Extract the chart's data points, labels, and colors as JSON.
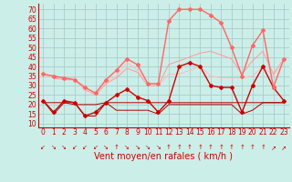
{
  "background_color": "#cceee8",
  "grid_color": "#aacccc",
  "xlabel": "Vent moyen/en rafales ( km/h )",
  "xlabel_color": "#cc0000",
  "xlabel_fontsize": 7,
  "ytick_labels": [
    "10",
    "15",
    "20",
    "25",
    "30",
    "35",
    "40",
    "45",
    "50",
    "55",
    "60",
    "65",
    "70"
  ],
  "ytick_vals": [
    10,
    15,
    20,
    25,
    30,
    35,
    40,
    45,
    50,
    55,
    60,
    65,
    70
  ],
  "xtick_vals": [
    0,
    1,
    2,
    3,
    4,
    5,
    6,
    7,
    8,
    9,
    10,
    11,
    12,
    13,
    14,
    15,
    16,
    17,
    18,
    19,
    20,
    21,
    22,
    23
  ],
  "ylim": [
    8,
    73
  ],
  "xlim": [
    -0.5,
    23.5
  ],
  "tick_color": "#cc0000",
  "tick_fontsize": 5.5,
  "spine_color": "#cc0000",
  "series": [
    {
      "y": [
        22,
        16,
        22,
        21,
        14,
        16,
        21,
        25,
        28,
        24,
        22,
        16,
        22,
        40,
        42,
        40,
        30,
        29,
        29,
        16,
        30,
        40,
        29,
        22
      ],
      "color": "#cc0000",
      "lw": 1.0,
      "marker": "D",
      "ms": 2.0,
      "zorder": 5
    },
    {
      "y": [
        21,
        21,
        21,
        20,
        20,
        20,
        21,
        21,
        21,
        21,
        21,
        21,
        21,
        21,
        21,
        21,
        21,
        21,
        21,
        21,
        21,
        21,
        21,
        21
      ],
      "color": "#aa0000",
      "lw": 0.7,
      "marker": null,
      "ms": 0,
      "zorder": 4
    },
    {
      "y": [
        22,
        15,
        21,
        21,
        14,
        14,
        21,
        17,
        17,
        17,
        17,
        15,
        20,
        20,
        20,
        20,
        20,
        20,
        20,
        15,
        17,
        21,
        21,
        21
      ],
      "color": "#aa0000",
      "lw": 0.7,
      "marker": null,
      "ms": 0,
      "zorder": 4
    },
    {
      "y": [
        36,
        35,
        34,
        33,
        29,
        26,
        33,
        38,
        44,
        41,
        31,
        31,
        64,
        70,
        70,
        70,
        67,
        63,
        50,
        35,
        51,
        59,
        29,
        44
      ],
      "color": "#ff6666",
      "lw": 1.0,
      "marker": "D",
      "ms": 2.0,
      "zorder": 5
    },
    {
      "y": [
        36,
        34,
        33,
        33,
        28,
        25,
        31,
        34,
        39,
        37,
        30,
        30,
        41,
        43,
        45,
        47,
        48,
        46,
        44,
        36,
        43,
        48,
        36,
        44
      ],
      "color": "#ff9999",
      "lw": 0.7,
      "marker": null,
      "ms": 0,
      "zorder": 3
    },
    {
      "y": [
        36,
        34,
        34,
        34,
        27,
        26,
        32,
        35,
        42,
        38,
        31,
        30,
        36,
        36,
        38,
        40,
        35,
        34,
        34,
        34,
        35,
        40,
        35,
        44
      ],
      "color": "#ffbbbb",
      "lw": 0.7,
      "marker": null,
      "ms": 0,
      "zorder": 3
    }
  ],
  "arrow_symbols": [
    "↙",
    "↘",
    "↘",
    "↙",
    "↙",
    "↙",
    "↘",
    "↑",
    "↘",
    "↘",
    "↘",
    "↘",
    "↑",
    "↑",
    "↑",
    "↑",
    "↑",
    "↑",
    "↑",
    "↑",
    "↑",
    "↑",
    "↗",
    "↗"
  ]
}
